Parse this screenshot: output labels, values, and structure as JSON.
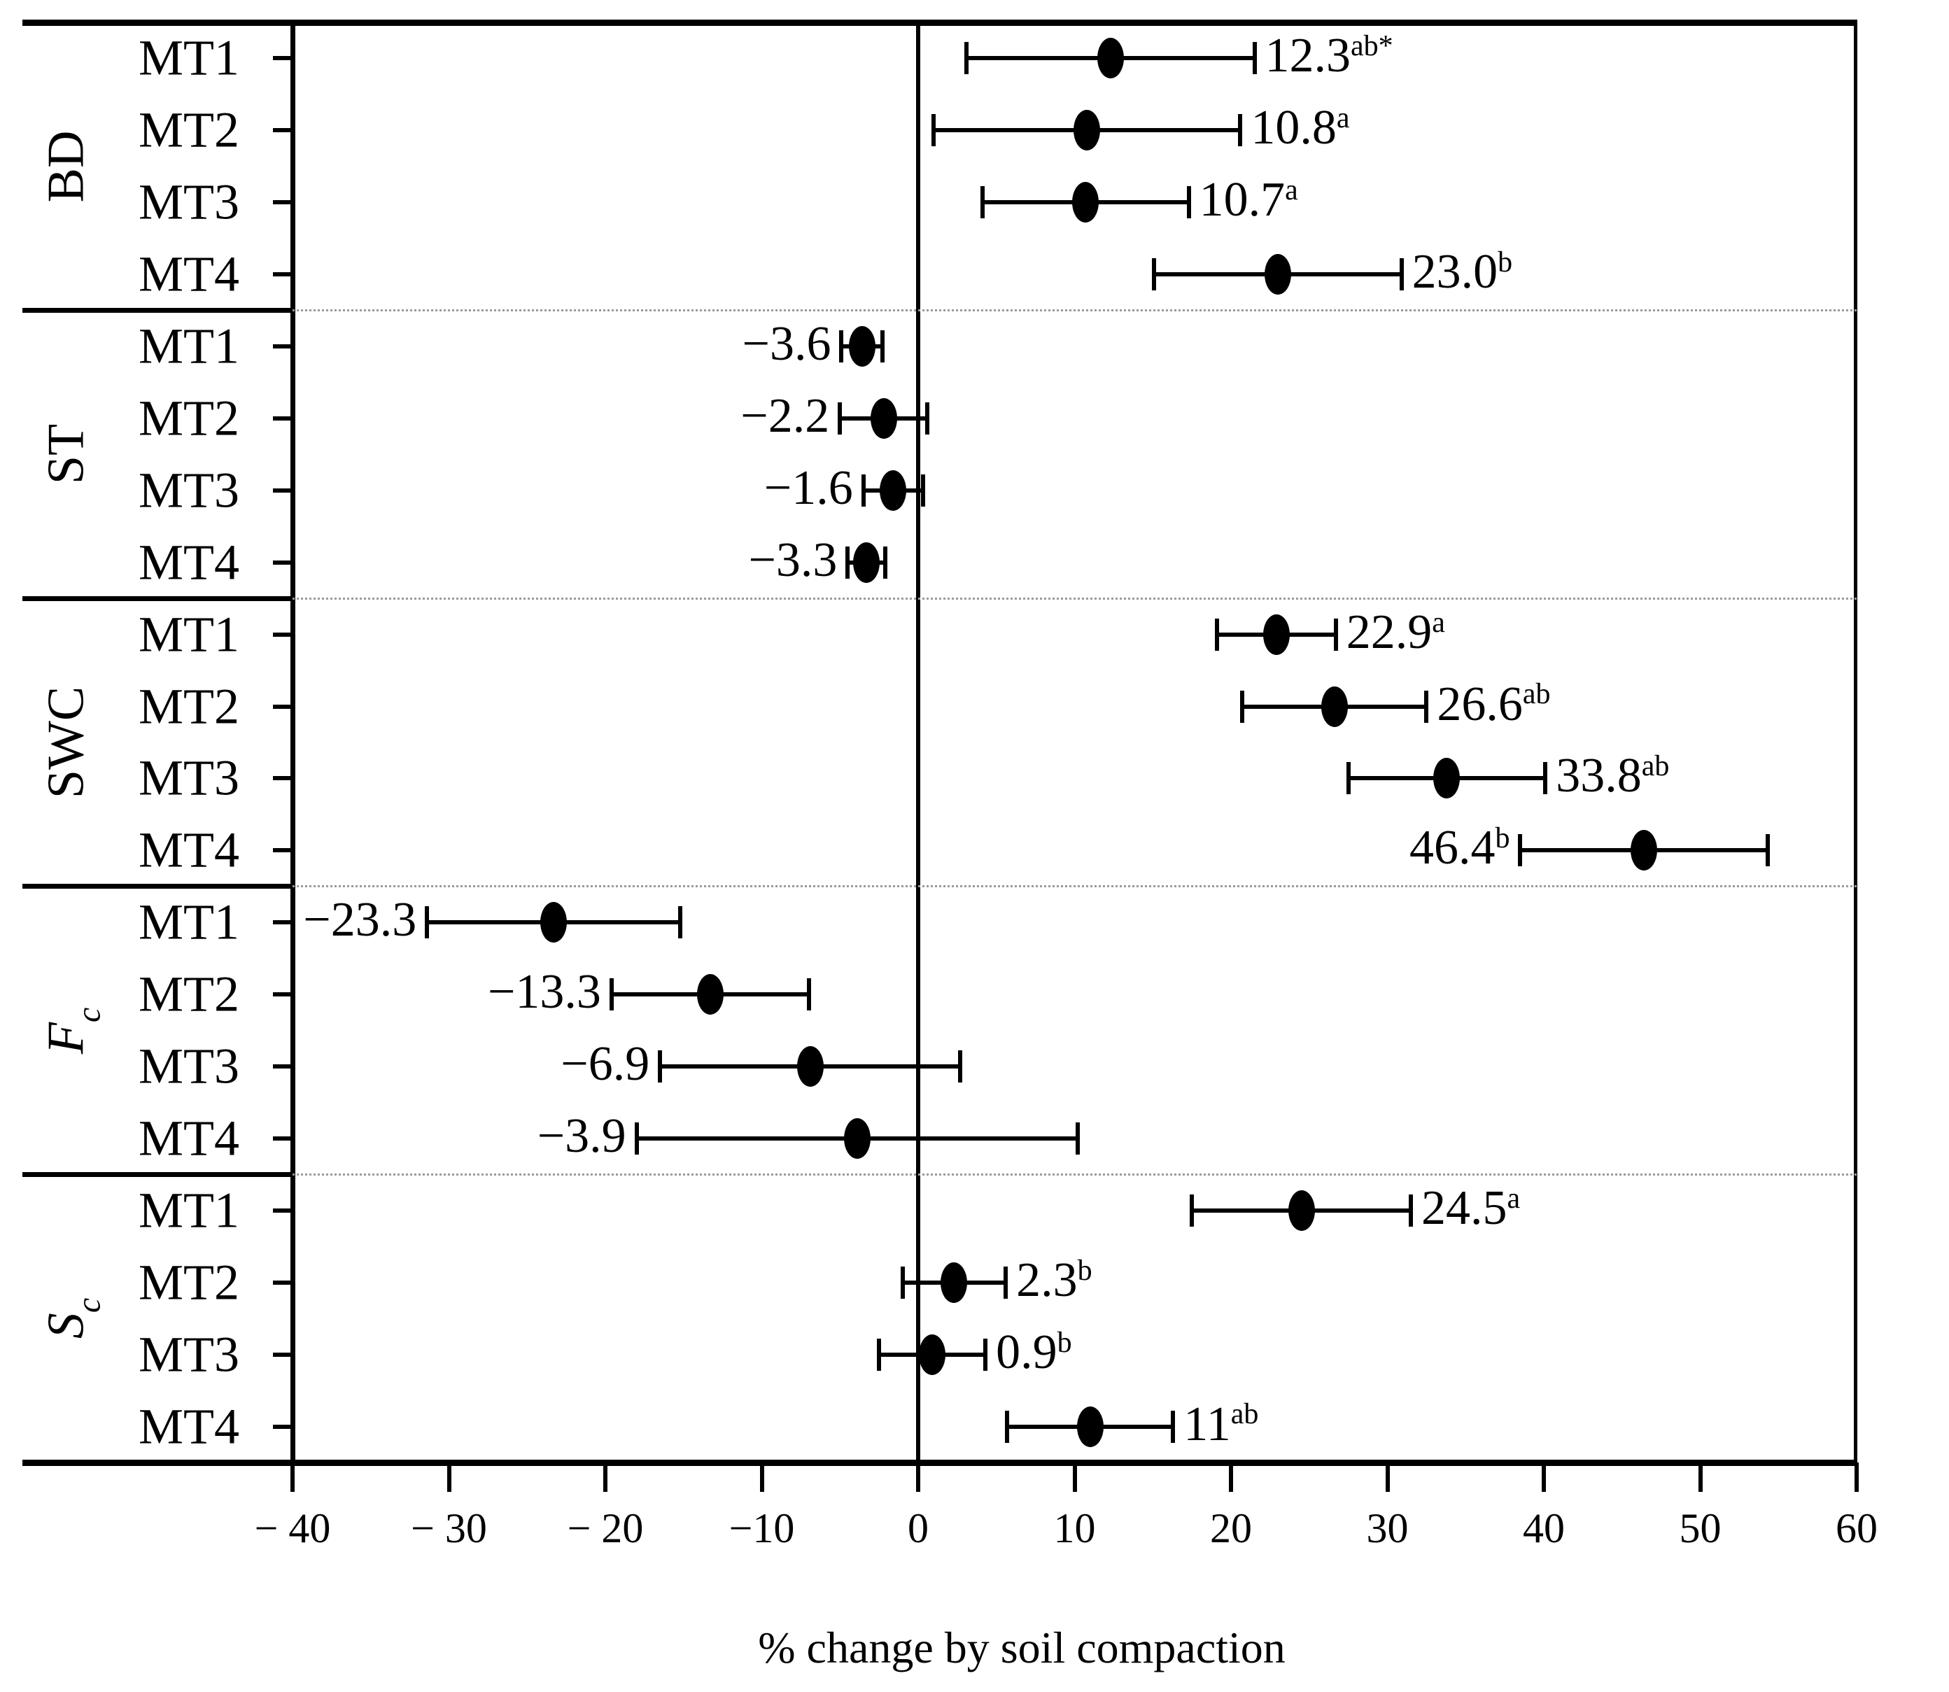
{
  "chart_data": {
    "type": "scatter",
    "subtype": "horizontal-dot-with-error-bars (forest plot)",
    "title": "",
    "xlabel": "% change by soil compaction",
    "ylabel": "",
    "xlim": [
      -40,
      60
    ],
    "grid": "dotted horizontal separators between variable groups; vertical zero reference line",
    "legend": null,
    "marker_color": "#000000",
    "separator_color": "#9a9a9a",
    "xticks": [
      {
        "value": -40,
        "label": "− 40"
      },
      {
        "value": -30,
        "label": "− 30"
      },
      {
        "value": -20,
        "label": "− 20"
      },
      {
        "value": -10,
        "label": "−10"
      },
      {
        "value": 0,
        "label": "0"
      },
      {
        "value": 10,
        "label": "10"
      },
      {
        "value": 20,
        "label": "20"
      },
      {
        "value": 30,
        "label": "30"
      },
      {
        "value": 40,
        "label": "40"
      },
      {
        "value": 50,
        "label": "50"
      },
      {
        "value": 60,
        "label": "60"
      }
    ],
    "groups": [
      {
        "name": "BD",
        "name_sub": "",
        "italic": false,
        "rows": [
          {
            "treatment": "MT1",
            "mean": 12.3,
            "ci_low": 3.1,
            "ci_high": 21.5,
            "value_label": "12.3",
            "superscript": "ab*",
            "label_side": "right"
          },
          {
            "treatment": "MT2",
            "mean": 10.8,
            "ci_low": 1.0,
            "ci_high": 20.6,
            "value_label": "10.8",
            "superscript": "a",
            "label_side": "right"
          },
          {
            "treatment": "MT3",
            "mean": 10.7,
            "ci_low": 4.1,
            "ci_high": 17.3,
            "value_label": "10.7",
            "superscript": "a",
            "label_side": "right"
          },
          {
            "treatment": "MT4",
            "mean": 23.0,
            "ci_low": 15.1,
            "ci_high": 30.9,
            "value_label": "23.0",
            "superscript": "b",
            "label_side": "right"
          }
        ]
      },
      {
        "name": "ST",
        "name_sub": "",
        "italic": false,
        "rows": [
          {
            "treatment": "MT1",
            "mean": -3.6,
            "ci_low": -4.9,
            "ci_high": -2.3,
            "value_label": "−3.6",
            "superscript": "",
            "label_side": "left"
          },
          {
            "treatment": "MT2",
            "mean": -2.2,
            "ci_low": -5.0,
            "ci_high": 0.6,
            "value_label": "−2.2",
            "superscript": "",
            "label_side": "left"
          },
          {
            "treatment": "MT3",
            "mean": -1.6,
            "ci_low": -3.5,
            "ci_high": 0.3,
            "value_label": "−1.6",
            "superscript": "",
            "label_side": "left"
          },
          {
            "treatment": "MT4",
            "mean": -3.3,
            "ci_low": -4.5,
            "ci_high": -2.1,
            "value_label": "−3.3",
            "superscript": "",
            "label_side": "left"
          }
        ]
      },
      {
        "name": "SWC",
        "name_sub": "",
        "italic": false,
        "rows": [
          {
            "treatment": "MT1",
            "mean": 22.9,
            "ci_low": 19.1,
            "ci_high": 26.7,
            "value_label": "22.9",
            "superscript": "a",
            "label_side": "right"
          },
          {
            "treatment": "MT2",
            "mean": 26.6,
            "ci_low": 20.7,
            "ci_high": 32.5,
            "value_label": "26.6",
            "superscript": "ab",
            "label_side": "right"
          },
          {
            "treatment": "MT3",
            "mean": 33.8,
            "ci_low": 27.5,
            "ci_high": 40.1,
            "value_label": "33.8",
            "superscript": "ab",
            "label_side": "right"
          },
          {
            "treatment": "MT4",
            "mean": 46.4,
            "ci_low": 38.5,
            "ci_high": 54.3,
            "value_label": "46.4",
            "superscript": "b",
            "label_side": "left"
          }
        ]
      },
      {
        "name": "F",
        "name_sub": "c",
        "italic": true,
        "rows": [
          {
            "treatment": "MT1",
            "mean": -23.3,
            "ci_low": -31.4,
            "ci_high": -15.2,
            "value_label": "−23.3",
            "superscript": "",
            "label_side": "left"
          },
          {
            "treatment": "MT2",
            "mean": -13.3,
            "ci_low": -19.6,
            "ci_high": -7.0,
            "value_label": "−13.3",
            "superscript": "",
            "label_side": "left"
          },
          {
            "treatment": "MT3",
            "mean": -6.9,
            "ci_low": -16.5,
            "ci_high": 2.7,
            "value_label": "−6.9",
            "superscript": "",
            "label_side": "left"
          },
          {
            "treatment": "MT4",
            "mean": -3.9,
            "ci_low": -18.0,
            "ci_high": 10.2,
            "value_label": "−3.9",
            "superscript": "",
            "label_side": "left"
          }
        ]
      },
      {
        "name": "S",
        "name_sub": "c",
        "italic": true,
        "rows": [
          {
            "treatment": "MT1",
            "mean": 24.5,
            "ci_low": 17.5,
            "ci_high": 31.5,
            "value_label": "24.5",
            "superscript": "a",
            "label_side": "right"
          },
          {
            "treatment": "MT2",
            "mean": 2.3,
            "ci_low": -1.0,
            "ci_high": 5.6,
            "value_label": "2.3",
            "superscript": "b",
            "label_side": "right"
          },
          {
            "treatment": "MT3",
            "mean": 0.9,
            "ci_low": -2.5,
            "ci_high": 4.3,
            "value_label": "0.9",
            "superscript": "b",
            "label_side": "right"
          },
          {
            "treatment": "MT4",
            "mean": 11,
            "ci_low": 5.7,
            "ci_high": 16.3,
            "value_label": "11",
            "superscript": "ab",
            "label_side": "right"
          }
        ]
      }
    ]
  }
}
